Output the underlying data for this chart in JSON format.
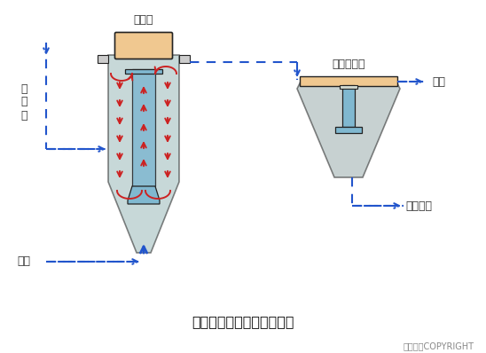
{
  "title": "三相生物流化床的工艺流程",
  "copyright": "东方仿真COPYRIGHT",
  "label_fluidized_bed": "流化床",
  "label_secondary_clarifier": "二次沉淀池",
  "label_effluent": "出水",
  "label_raw_sewage": "原\n污\n水",
  "label_air": "空气",
  "label_sludge": "污泥排放",
  "bg_color": "#ffffff",
  "tank_fill": "#9ab8b8",
  "top_fill": "#f0c890",
  "inner_tube_fill": "#80b8d0",
  "arrow_color": "#cc2222",
  "flow_color": "#2255cc",
  "text_color": "#333333",
  "outline_color": "#222222",
  "clarifier_fill": "#9aacac"
}
